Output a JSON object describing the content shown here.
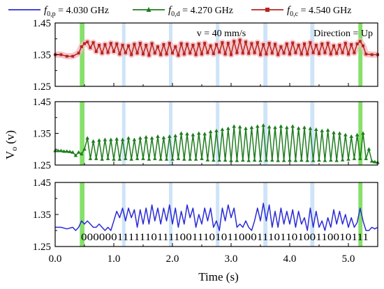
{
  "chart_data": {
    "type": "line",
    "xlabel": "Time (s)",
    "ylabel": "V",
    "ylabel_sub": "o",
    "ylabel_unit": "(v)",
    "xlim": [
      0.0,
      5.5
    ],
    "x_ticks": [
      "0.0",
      "1.0",
      "2.0",
      "3.0",
      "4.0",
      "5.0"
    ],
    "legend_placement": "top",
    "legend": [
      {
        "base": "f",
        "sub": "0,p",
        "text": " = 4.030 GHz",
        "color": "#2b2bd6",
        "marker": "none"
      },
      {
        "base": "f",
        "sub": "0,d",
        "text": " = 4.270 GHz",
        "color": "#1e7d1e",
        "marker": "triangle"
      },
      {
        "base": "f",
        "sub": "0,c",
        "text": " = 4.540 GHz",
        "color": "#b5261e",
        "marker": "square"
      }
    ],
    "annotations": {
      "speed": "v = 40 mm/s",
      "direction": "Direction = Up",
      "bits": "0000001111110111100111010110001110110100110010111"
    },
    "marker_green_bands": [
      [
        0.42,
        0.5
      ],
      [
        5.17,
        5.24
      ]
    ],
    "marker_blue_bands": [
      [
        1.14,
        1.2
      ],
      [
        1.94,
        2.0
      ],
      [
        2.74,
        2.8
      ],
      [
        3.55,
        3.62
      ],
      [
        4.35,
        4.42
      ]
    ],
    "panels": [
      {
        "name": "f0,c = 4.540 GHz",
        "color": "#b5261e",
        "marker": "square",
        "band": true,
        "ylim": [
          1.25,
          1.45
        ],
        "y_ticks": [
          "1.25",
          "1.35",
          "1.45"
        ],
        "x": [
          0.0,
          0.1,
          0.2,
          0.3,
          0.4,
          0.45,
          0.5,
          0.55,
          0.6,
          0.65,
          0.7,
          0.75,
          0.8,
          0.85,
          0.9,
          0.95,
          1.0,
          1.05,
          1.1,
          1.15,
          1.2,
          1.25,
          1.3,
          1.35,
          1.4,
          1.45,
          1.5,
          1.55,
          1.6,
          1.65,
          1.7,
          1.75,
          1.8,
          1.85,
          1.9,
          1.95,
          2.0,
          2.05,
          2.1,
          2.15,
          2.2,
          2.25,
          2.3,
          2.35,
          2.4,
          2.45,
          2.5,
          2.55,
          2.6,
          2.65,
          2.7,
          2.75,
          2.8,
          2.85,
          2.9,
          2.95,
          3.0,
          3.05,
          3.1,
          3.15,
          3.2,
          3.25,
          3.3,
          3.35,
          3.4,
          3.45,
          3.5,
          3.55,
          3.6,
          3.65,
          3.7,
          3.75,
          3.8,
          3.85,
          3.9,
          3.95,
          4.0,
          4.05,
          4.1,
          4.15,
          4.2,
          4.25,
          4.3,
          4.35,
          4.4,
          4.45,
          4.5,
          4.55,
          4.6,
          4.65,
          4.7,
          4.75,
          4.8,
          4.85,
          4.9,
          4.95,
          5.0,
          5.05,
          5.1,
          5.15,
          5.2,
          5.25,
          5.3,
          5.4,
          5.5
        ],
        "y": [
          1.35,
          1.35,
          1.345,
          1.345,
          1.355,
          1.375,
          1.385,
          1.39,
          1.372,
          1.388,
          1.36,
          1.38,
          1.355,
          1.382,
          1.357,
          1.386,
          1.36,
          1.384,
          1.352,
          1.38,
          1.356,
          1.378,
          1.35,
          1.383,
          1.355,
          1.386,
          1.352,
          1.38,
          1.348,
          1.385,
          1.355,
          1.375,
          1.35,
          1.382,
          1.352,
          1.386,
          1.355,
          1.375,
          1.348,
          1.385,
          1.352,
          1.383,
          1.355,
          1.38,
          1.35,
          1.384,
          1.352,
          1.386,
          1.356,
          1.378,
          1.353,
          1.382,
          1.358,
          1.388,
          1.352,
          1.386,
          1.35,
          1.392,
          1.356,
          1.396,
          1.355,
          1.39,
          1.354,
          1.385,
          1.356,
          1.388,
          1.35,
          1.382,
          1.352,
          1.386,
          1.355,
          1.383,
          1.35,
          1.375,
          1.355,
          1.384,
          1.352,
          1.387,
          1.356,
          1.38,
          1.352,
          1.384,
          1.352,
          1.388,
          1.356,
          1.38,
          1.353,
          1.384,
          1.356,
          1.386,
          1.352,
          1.378,
          1.354,
          1.38,
          1.356,
          1.386,
          1.352,
          1.382,
          1.356,
          1.384,
          1.392,
          1.378,
          1.352,
          1.35,
          1.35
        ]
      },
      {
        "name": "f0,d = 4.270 GHz",
        "color": "#1e7d1e",
        "marker": "triangle",
        "band": false,
        "ylim": [
          1.25,
          1.45
        ],
        "y_ticks": [
          "1.25",
          "1.35",
          "1.45"
        ],
        "x": [
          0.0,
          0.05,
          0.1,
          0.15,
          0.2,
          0.25,
          0.3,
          0.35,
          0.4,
          0.45,
          0.5,
          0.55,
          0.6,
          0.65,
          0.7,
          0.75,
          0.8,
          0.85,
          0.9,
          0.95,
          1.0,
          1.05,
          1.1,
          1.15,
          1.2,
          1.25,
          1.3,
          1.35,
          1.4,
          1.45,
          1.5,
          1.55,
          1.6,
          1.65,
          1.7,
          1.75,
          1.8,
          1.85,
          1.9,
          1.95,
          2.0,
          2.05,
          2.1,
          2.15,
          2.2,
          2.25,
          2.3,
          2.35,
          2.4,
          2.45,
          2.5,
          2.55,
          2.6,
          2.65,
          2.7,
          2.75,
          2.8,
          2.85,
          2.9,
          2.95,
          3.0,
          3.05,
          3.1,
          3.15,
          3.2,
          3.25,
          3.3,
          3.35,
          3.4,
          3.45,
          3.5,
          3.55,
          3.6,
          3.65,
          3.7,
          3.75,
          3.8,
          3.85,
          3.9,
          3.95,
          4.0,
          4.05,
          4.1,
          4.15,
          4.2,
          4.25,
          4.3,
          4.35,
          4.4,
          4.45,
          4.5,
          4.55,
          4.6,
          4.65,
          4.7,
          4.75,
          4.8,
          4.85,
          4.9,
          4.95,
          5.0,
          5.05,
          5.1,
          5.15,
          5.2,
          5.25,
          5.3,
          5.35,
          5.4,
          5.45,
          5.5
        ],
        "y": [
          1.295,
          1.295,
          1.295,
          1.293,
          1.293,
          1.292,
          1.29,
          1.28,
          1.29,
          1.285,
          1.3,
          1.335,
          1.27,
          1.325,
          1.27,
          1.328,
          1.268,
          1.33,
          1.27,
          1.33,
          1.268,
          1.332,
          1.268,
          1.33,
          1.27,
          1.335,
          1.268,
          1.33,
          1.27,
          1.335,
          1.27,
          1.338,
          1.268,
          1.335,
          1.27,
          1.34,
          1.268,
          1.336,
          1.268,
          1.34,
          1.268,
          1.342,
          1.27,
          1.35,
          1.268,
          1.348,
          1.268,
          1.345,
          1.268,
          1.35,
          1.27,
          1.348,
          1.266,
          1.355,
          1.265,
          1.358,
          1.265,
          1.362,
          1.265,
          1.365,
          1.264,
          1.372,
          1.264,
          1.37,
          1.265,
          1.365,
          1.264,
          1.368,
          1.265,
          1.372,
          1.264,
          1.375,
          1.265,
          1.37,
          1.265,
          1.368,
          1.264,
          1.372,
          1.264,
          1.368,
          1.265,
          1.372,
          1.264,
          1.366,
          1.265,
          1.368,
          1.264,
          1.365,
          1.264,
          1.362,
          1.265,
          1.358,
          1.264,
          1.36,
          1.265,
          1.352,
          1.264,
          1.35,
          1.266,
          1.345,
          1.268,
          1.34,
          1.27,
          1.345,
          1.27,
          1.35,
          1.27,
          1.3,
          1.262,
          1.26,
          1.258
        ]
      },
      {
        "name": "f0,p = 4.030 GHz",
        "color": "#2b2bd6",
        "marker": "none",
        "band": false,
        "ylim": [
          1.25,
          1.45
        ],
        "y_ticks": [
          "1.25",
          "1.35",
          "1.45"
        ],
        "x": [
          0.0,
          0.1,
          0.2,
          0.3,
          0.35,
          0.4,
          0.45,
          0.5,
          0.55,
          0.6,
          0.65,
          0.7,
          0.75,
          0.8,
          0.85,
          0.9,
          0.95,
          1.0,
          1.05,
          1.1,
          1.15,
          1.2,
          1.25,
          1.3,
          1.35,
          1.4,
          1.45,
          1.5,
          1.55,
          1.6,
          1.65,
          1.7,
          1.75,
          1.8,
          1.85,
          1.9,
          1.95,
          2.0,
          2.05,
          2.1,
          2.15,
          2.2,
          2.25,
          2.3,
          2.35,
          2.4,
          2.45,
          2.5,
          2.55,
          2.6,
          2.65,
          2.7,
          2.75,
          2.8,
          2.85,
          2.9,
          2.95,
          3.0,
          3.05,
          3.1,
          3.15,
          3.2,
          3.25,
          3.3,
          3.35,
          3.4,
          3.45,
          3.5,
          3.55,
          3.6,
          3.65,
          3.7,
          3.75,
          3.8,
          3.85,
          3.9,
          3.95,
          4.0,
          4.05,
          4.1,
          4.15,
          4.2,
          4.25,
          4.3,
          4.35,
          4.4,
          4.45,
          4.5,
          4.55,
          4.6,
          4.65,
          4.7,
          4.75,
          4.8,
          4.85,
          4.9,
          4.95,
          5.0,
          5.05,
          5.1,
          5.15,
          5.2,
          5.25,
          5.3,
          5.35,
          5.4,
          5.45,
          5.5
        ],
        "y": [
          1.31,
          1.31,
          1.305,
          1.31,
          1.3,
          1.31,
          1.33,
          1.32,
          1.33,
          1.32,
          1.31,
          1.31,
          1.32,
          1.31,
          1.3,
          1.31,
          1.3,
          1.33,
          1.36,
          1.34,
          1.37,
          1.33,
          1.37,
          1.34,
          1.365,
          1.31,
          1.365,
          1.32,
          1.37,
          1.32,
          1.38,
          1.33,
          1.37,
          1.32,
          1.37,
          1.33,
          1.38,
          1.32,
          1.37,
          1.31,
          1.36,
          1.32,
          1.38,
          1.34,
          1.37,
          1.31,
          1.35,
          1.32,
          1.37,
          1.33,
          1.37,
          1.31,
          1.33,
          1.3,
          1.37,
          1.33,
          1.38,
          1.34,
          1.37,
          1.31,
          1.32,
          1.31,
          1.33,
          1.31,
          1.3,
          1.33,
          1.37,
          1.33,
          1.385,
          1.33,
          1.38,
          1.31,
          1.36,
          1.31,
          1.37,
          1.32,
          1.36,
          1.32,
          1.365,
          1.31,
          1.36,
          1.32,
          1.34,
          1.3,
          1.37,
          1.31,
          1.36,
          1.31,
          1.33,
          1.3,
          1.34,
          1.31,
          1.365,
          1.32,
          1.36,
          1.32,
          1.35,
          1.31,
          1.34,
          1.31,
          1.325,
          1.37,
          1.33,
          1.3,
          1.3,
          1.31,
          1.305,
          1.31
        ]
      }
    ]
  }
}
